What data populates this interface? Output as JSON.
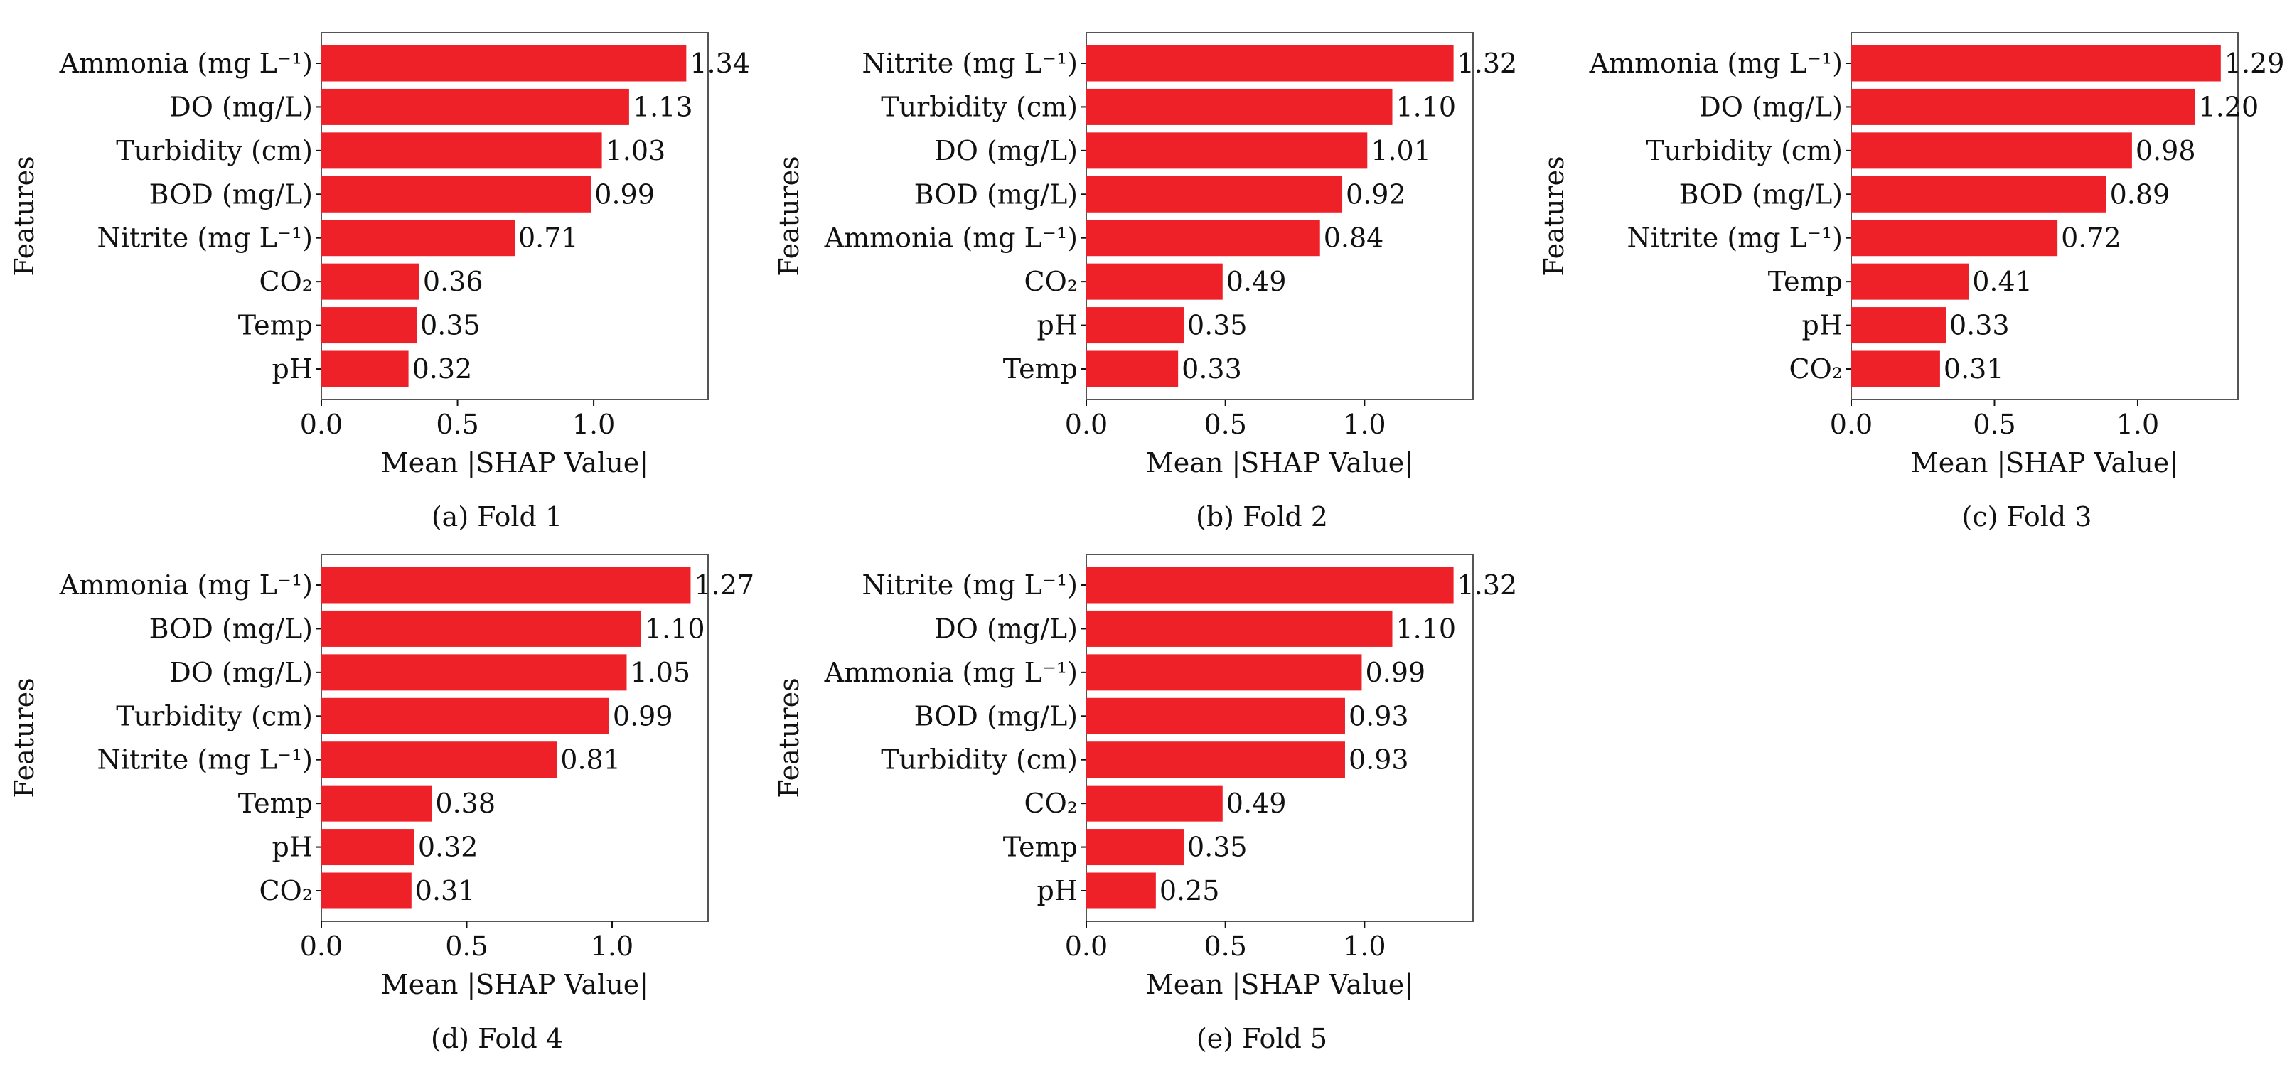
{
  "bar_color": "#ee2028",
  "chart_data": [
    {
      "type": "bar",
      "orientation": "horizontal",
      "caption": "(a) Fold 1",
      "xlabel": "Mean |SHAP Value|",
      "ylabel": "Features",
      "categories": [
        "Ammonia (mg L⁻¹)",
        "DO (mg/L)",
        "Turbidity (cm)",
        "BOD (mg/L)",
        "Nitrite (mg L⁻¹)",
        "CO₂",
        "Temp",
        "pH"
      ],
      "values": [
        1.34,
        1.13,
        1.03,
        0.99,
        0.71,
        0.36,
        0.35,
        0.32
      ],
      "value_labels": [
        "1.34",
        "1.13",
        "1.03",
        "0.99",
        "0.71",
        "0.36",
        "0.35",
        "0.32"
      ],
      "xticks": [
        0.0,
        0.5,
        1.0
      ],
      "xtick_labels": [
        "0.0",
        "0.5",
        "1.0"
      ],
      "xlim": [
        0,
        1.42
      ],
      "grid": false
    },
    {
      "type": "bar",
      "orientation": "horizontal",
      "caption": "(b) Fold 2",
      "xlabel": "Mean |SHAP Value|",
      "ylabel": "Features",
      "categories": [
        "Nitrite (mg L⁻¹)",
        "Turbidity (cm)",
        "DO (mg/L)",
        "BOD (mg/L)",
        "Ammonia (mg L⁻¹)",
        "CO₂",
        "pH",
        "Temp"
      ],
      "values": [
        1.32,
        1.1,
        1.01,
        0.92,
        0.84,
        0.49,
        0.35,
        0.33
      ],
      "value_labels": [
        "1.32",
        "1.10",
        "1.01",
        "0.92",
        "0.84",
        "0.49",
        "0.35",
        "0.33"
      ],
      "xticks": [
        0.0,
        0.5,
        1.0
      ],
      "xtick_labels": [
        "0.0",
        "0.5",
        "1.0"
      ],
      "xlim": [
        0,
        1.39
      ],
      "grid": false
    },
    {
      "type": "bar",
      "orientation": "horizontal",
      "caption": "(c) Fold 3",
      "xlabel": "Mean |SHAP Value|",
      "ylabel": "Features",
      "categories": [
        "Ammonia (mg L⁻¹)",
        "DO (mg/L)",
        "Turbidity (cm)",
        "BOD (mg/L)",
        "Nitrite (mg L⁻¹)",
        "Temp",
        "pH",
        "CO₂"
      ],
      "values": [
        1.29,
        1.2,
        0.98,
        0.89,
        0.72,
        0.41,
        0.33,
        0.31
      ],
      "value_labels": [
        "1.29",
        "1.20",
        "0.98",
        "0.89",
        "0.72",
        "0.41",
        "0.33",
        "0.31"
      ],
      "xticks": [
        0.0,
        0.5,
        1.0
      ],
      "xtick_labels": [
        "0.0",
        "0.5",
        "1.0"
      ],
      "xlim": [
        0,
        1.35
      ],
      "grid": false
    },
    {
      "type": "bar",
      "orientation": "horizontal",
      "caption": "(d) Fold 4",
      "xlabel": "Mean |SHAP Value|",
      "ylabel": "Features",
      "categories": [
        "Ammonia (mg L⁻¹)",
        "BOD (mg/L)",
        "DO (mg/L)",
        "Turbidity (cm)",
        "Nitrite (mg L⁻¹)",
        "Temp",
        "pH",
        "CO₂"
      ],
      "values": [
        1.27,
        1.1,
        1.05,
        0.99,
        0.81,
        0.38,
        0.32,
        0.31
      ],
      "value_labels": [
        "1.27",
        "1.10",
        "1.05",
        "0.99",
        "0.81",
        "0.38",
        "0.32",
        "0.31"
      ],
      "xticks": [
        0.0,
        0.5,
        1.0
      ],
      "xtick_labels": [
        "0.0",
        "0.5",
        "1.0"
      ],
      "xlim": [
        0,
        1.33
      ],
      "grid": false
    },
    {
      "type": "bar",
      "orientation": "horizontal",
      "caption": "(e) Fold 5",
      "xlabel": "Mean |SHAP Value|",
      "ylabel": "Features",
      "categories": [
        "Nitrite (mg L⁻¹)",
        "DO (mg/L)",
        "Ammonia (mg L⁻¹)",
        "BOD (mg/L)",
        "Turbidity (cm)",
        "CO₂",
        "Temp",
        "pH"
      ],
      "values": [
        1.32,
        1.1,
        0.99,
        0.93,
        0.93,
        0.49,
        0.35,
        0.25
      ],
      "value_labels": [
        "1.32",
        "1.10",
        "0.99",
        "0.93",
        "0.93",
        "0.49",
        "0.35",
        "0.25"
      ],
      "xticks": [
        0.0,
        0.5,
        1.0
      ],
      "xtick_labels": [
        "0.0",
        "0.5",
        "1.0"
      ],
      "xlim": [
        0,
        1.39
      ],
      "grid": false
    }
  ]
}
